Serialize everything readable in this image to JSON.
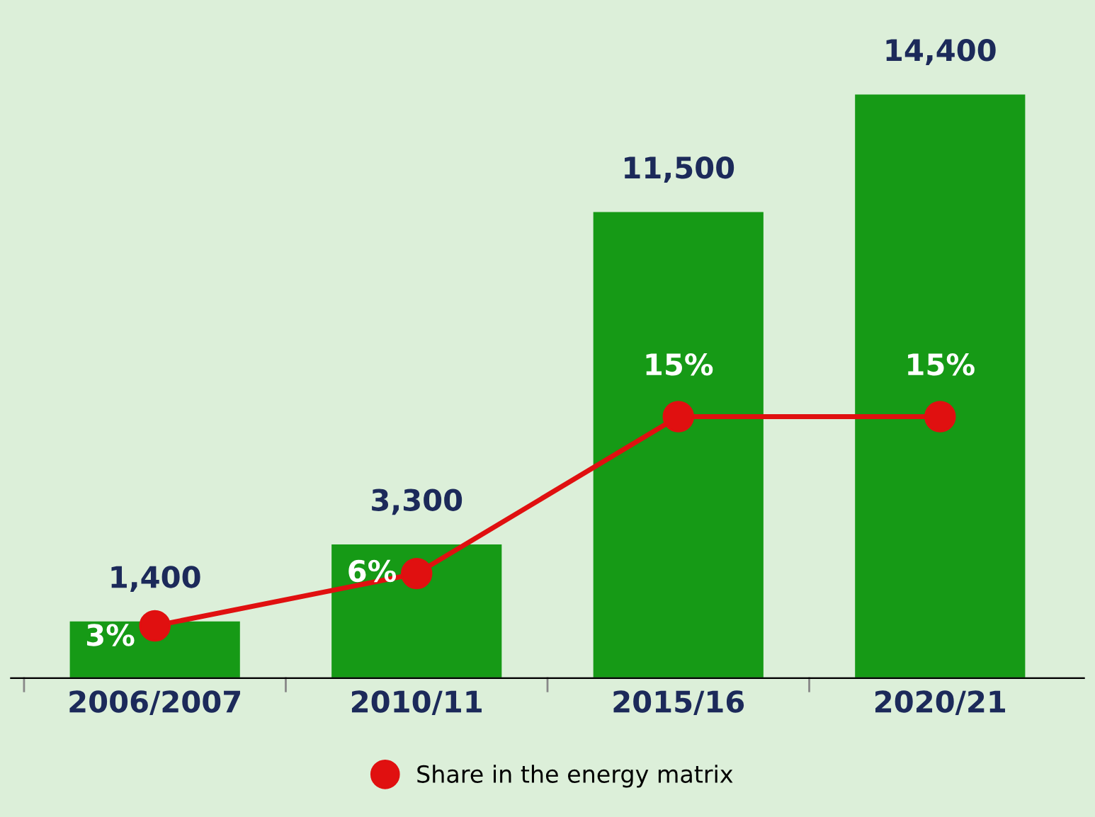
{
  "chart_data": {
    "type": "bar",
    "categories": [
      "2006/2007",
      "2010/11",
      "2015/16",
      "2020/21"
    ],
    "series": [
      {
        "type": "bar",
        "color": "#169a16",
        "values": [
          1400,
          3300,
          11500,
          14400
        ],
        "value_labels": [
          "1,400",
          "3,300",
          "11,500",
          "14,400"
        ]
      },
      {
        "type": "line",
        "name": "Share in the energy matrix",
        "color": "#e01010",
        "axis": "y2",
        "values": [
          3,
          6,
          15,
          15
        ],
        "value_labels": [
          "3%",
          "6%",
          "15%",
          "15%"
        ]
      }
    ],
    "tick_labels": "x",
    "legend": "bottom",
    "marker": "circle"
  }
}
